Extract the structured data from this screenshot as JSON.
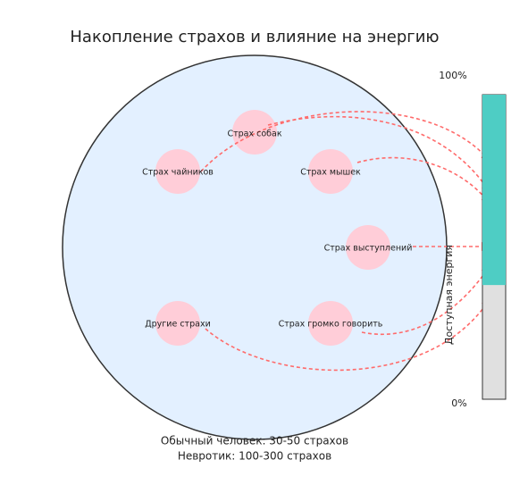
{
  "title": "Накопление страхов и влияние на энергию",
  "nodes": [
    {
      "label": "Страх собак"
    },
    {
      "label": "Страх чайников"
    },
    {
      "label": "Страх мышек"
    },
    {
      "label": "Страх выступлений"
    },
    {
      "label": "Другие страхи"
    },
    {
      "label": "Страх громко говорить"
    }
  ],
  "energy": {
    "top_label": "100%",
    "bottom_label": "0%",
    "axis_label": "Доступная энергия",
    "level": 62.5
  },
  "notes": [
    "Обычный человек: 30-50 страхов",
    "Невротик: 100-300 страхов"
  ]
}
